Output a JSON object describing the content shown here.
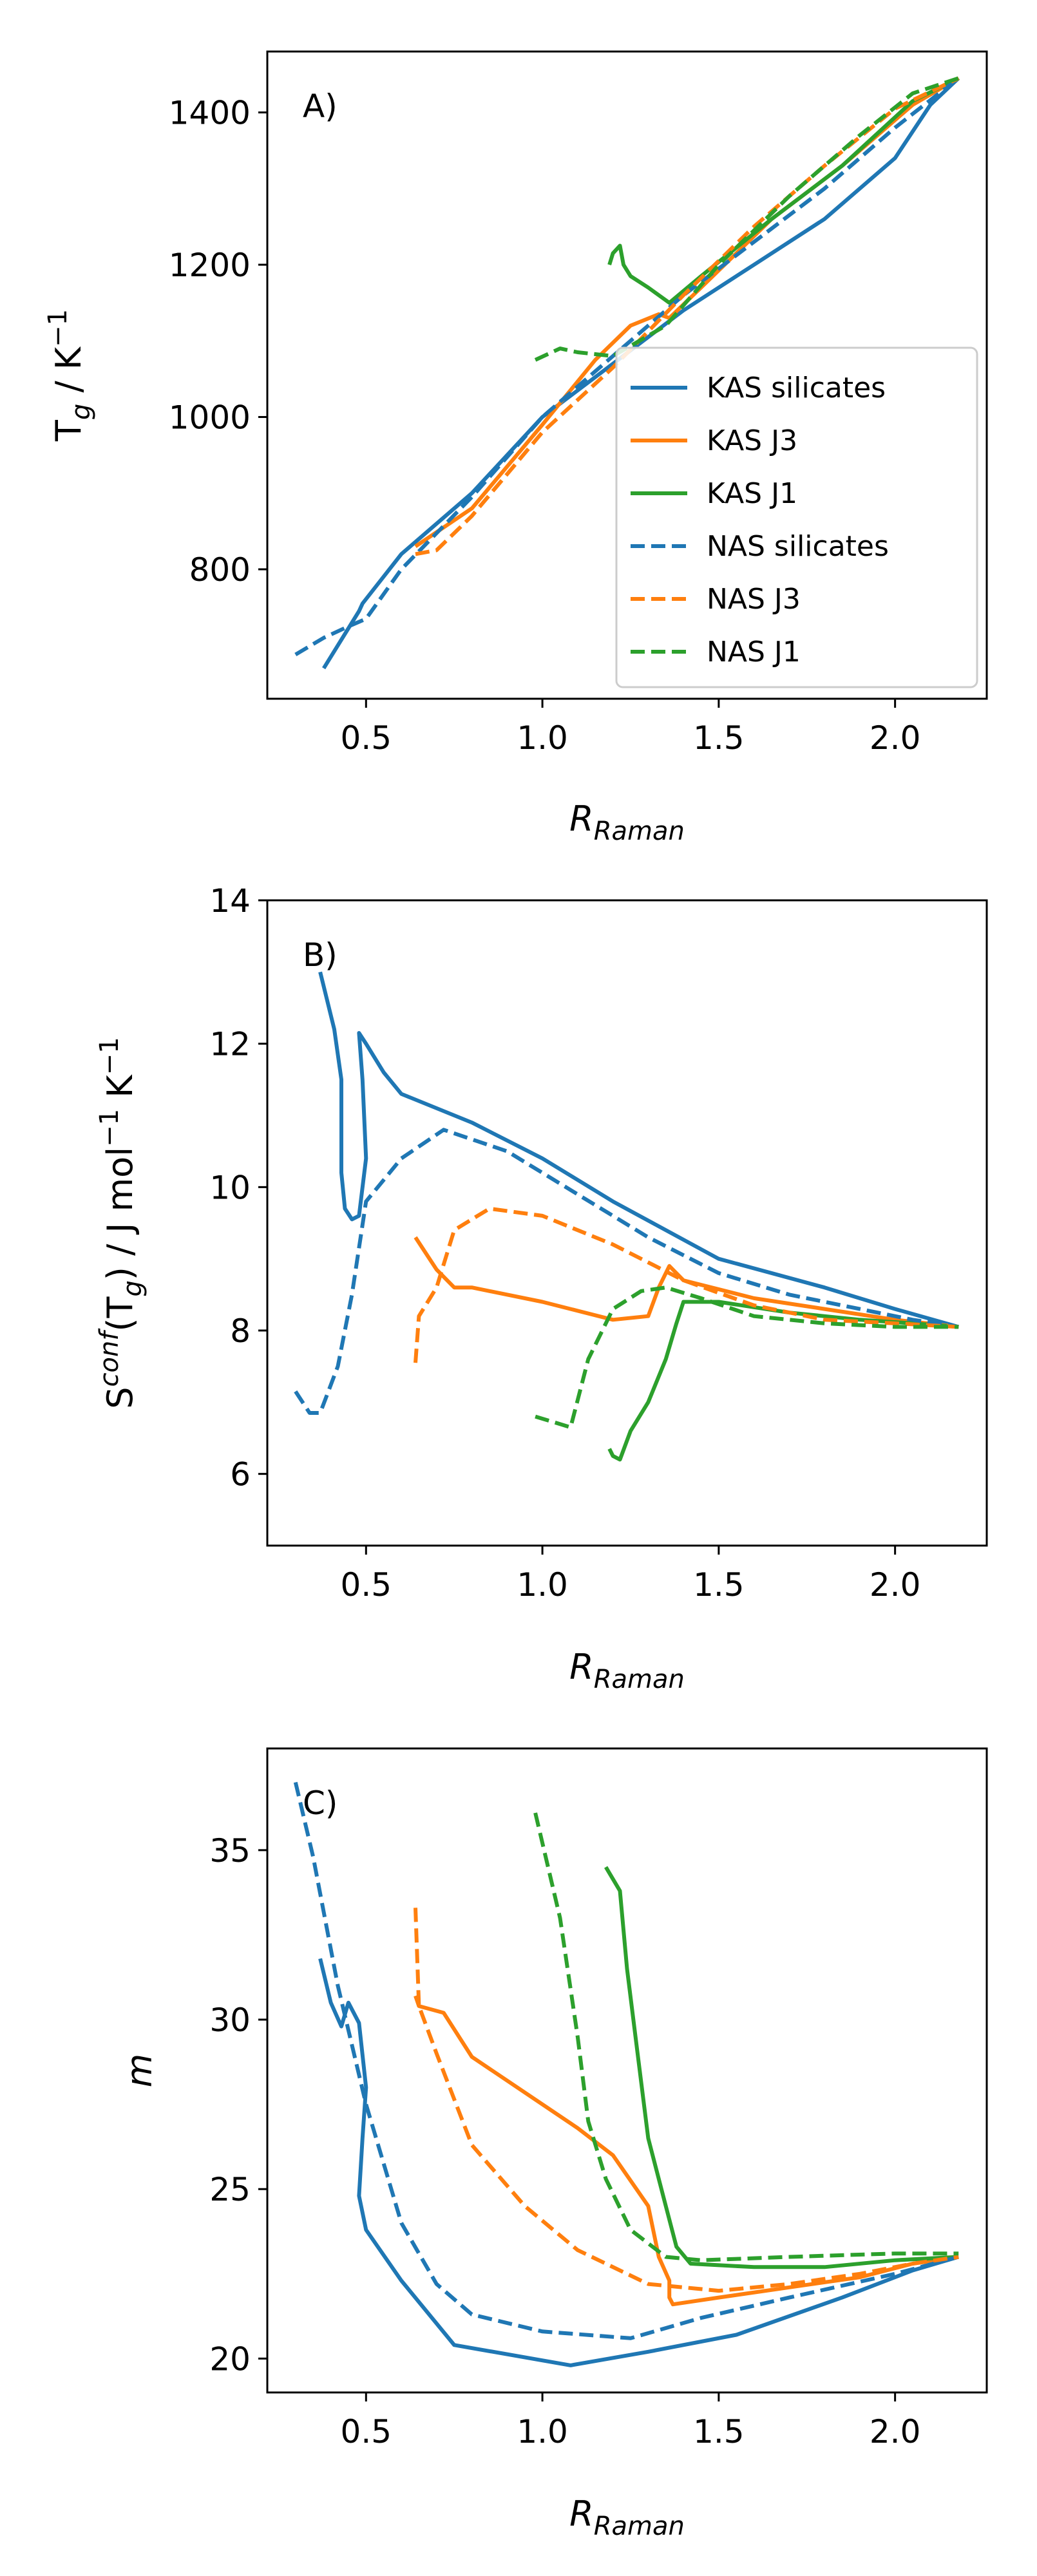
{
  "chart_data": [
    {
      "type": "line",
      "panel_label": "A)",
      "xlabel": "R_Raman",
      "ylabel": "T_g / K⁻¹",
      "xlim": [
        0.22,
        2.26
      ],
      "ylim": [
        630,
        1480
      ],
      "xticks": [
        "0.5",
        "1.0",
        "1.5",
        "2.0"
      ],
      "yticks": [
        "800",
        "1000",
        "1200",
        "1400"
      ],
      "legend_position": "lower-right",
      "series": [
        {
          "name": "KAS silicates",
          "color": "#1f77b4",
          "style": "solid",
          "x": [
            0.38,
            0.48,
            0.49,
            0.6,
            0.8,
            1.0,
            1.2,
            1.4,
            1.6,
            1.8,
            2.0,
            2.1,
            2.18
          ],
          "y": [
            670,
            745,
            755,
            820,
            900,
            1000,
            1070,
            1140,
            1200,
            1260,
            1340,
            1410,
            1445
          ]
        },
        {
          "name": "KAS J3",
          "color": "#ff7f0e",
          "style": "solid",
          "x": [
            0.64,
            0.8,
            1.0,
            1.15,
            1.25,
            1.33,
            1.36,
            1.45,
            1.65,
            1.85,
            2.05,
            2.18
          ],
          "y": [
            830,
            880,
            990,
            1075,
            1120,
            1135,
            1130,
            1170,
            1260,
            1330,
            1410,
            1445
          ]
        },
        {
          "name": "KAS J1",
          "color": "#2ca02c",
          "style": "solid",
          "x": [
            1.19,
            1.2,
            1.22,
            1.23,
            1.25,
            1.3,
            1.36,
            1.45,
            1.65,
            1.85,
            2.05,
            2.18
          ],
          "y": [
            1200,
            1215,
            1225,
            1200,
            1185,
            1170,
            1150,
            1185,
            1260,
            1330,
            1415,
            1445
          ]
        },
        {
          "name": "NAS silicates",
          "color": "#1f77b4",
          "style": "dashed",
          "x": [
            0.3,
            0.38,
            0.45,
            0.5,
            0.6,
            0.8,
            1.0,
            1.2,
            1.4,
            1.6,
            1.8,
            2.0,
            2.18
          ],
          "y": [
            688,
            710,
            725,
            735,
            800,
            895,
            1000,
            1080,
            1160,
            1230,
            1300,
            1380,
            1445
          ]
        },
        {
          "name": "NAS J3",
          "color": "#ff7f0e",
          "style": "dashed",
          "x": [
            0.64,
            0.7,
            0.8,
            1.0,
            1.2,
            1.4,
            1.6,
            1.8,
            2.0,
            2.18
          ],
          "y": [
            820,
            825,
            870,
            980,
            1065,
            1160,
            1250,
            1330,
            1405,
            1445
          ]
        },
        {
          "name": "NAS J1",
          "color": "#2ca02c",
          "style": "dashed",
          "x": [
            0.98,
            1.05,
            1.1,
            1.2,
            1.35,
            1.5,
            1.7,
            1.9,
            2.05,
            2.18
          ],
          "y": [
            1075,
            1090,
            1085,
            1080,
            1120,
            1200,
            1290,
            1370,
            1425,
            1445
          ]
        }
      ]
    },
    {
      "type": "line",
      "panel_label": "B)",
      "xlabel": "R_Raman",
      "ylabel": "S^conf(T_g) / J mol⁻¹ K⁻¹",
      "xlim": [
        0.22,
        2.26
      ],
      "ylim": [
        5,
        14
      ],
      "xticks": [
        "0.5",
        "1.0",
        "1.5",
        "2.0"
      ],
      "yticks": [
        "6",
        "8",
        "10",
        "12",
        "14"
      ],
      "series": [
        {
          "name": "KAS silicates",
          "color": "#1f77b4",
          "style": "solid",
          "x": [
            0.37,
            0.41,
            0.43,
            0.43,
            0.44,
            0.46,
            0.48,
            0.5,
            0.49,
            0.48,
            0.5,
            0.55,
            0.6,
            0.8,
            1.0,
            1.2,
            1.5,
            1.8,
            2.0,
            2.18
          ],
          "y": [
            13.0,
            12.2,
            11.5,
            10.2,
            9.7,
            9.55,
            9.6,
            10.4,
            11.5,
            12.15,
            12.0,
            11.6,
            11.3,
            10.9,
            10.4,
            9.8,
            9.0,
            8.6,
            8.3,
            8.05
          ]
        },
        {
          "name": "KAS J3",
          "color": "#ff7f0e",
          "style": "solid",
          "x": [
            0.64,
            0.7,
            0.75,
            0.8,
            1.0,
            1.2,
            1.3,
            1.33,
            1.36,
            1.4,
            1.6,
            1.8,
            2.0,
            2.18
          ],
          "y": [
            9.3,
            8.85,
            8.6,
            8.6,
            8.4,
            8.15,
            8.2,
            8.6,
            8.9,
            8.7,
            8.45,
            8.3,
            8.15,
            8.05
          ]
        },
        {
          "name": "KAS J1",
          "color": "#2ca02c",
          "style": "solid",
          "x": [
            1.19,
            1.2,
            1.22,
            1.25,
            1.3,
            1.35,
            1.38,
            1.4,
            1.5,
            1.7,
            1.9,
            2.05,
            2.18
          ],
          "y": [
            6.35,
            6.25,
            6.2,
            6.6,
            7.0,
            7.6,
            8.1,
            8.4,
            8.4,
            8.25,
            8.15,
            8.1,
            8.05
          ]
        },
        {
          "name": "NAS silicates",
          "color": "#1f77b4",
          "style": "dashed",
          "x": [
            0.3,
            0.34,
            0.37,
            0.42,
            0.46,
            0.5,
            0.6,
            0.72,
            0.9,
            1.1,
            1.3,
            1.5,
            1.7,
            1.9,
            2.05,
            2.18
          ],
          "y": [
            7.15,
            6.85,
            6.85,
            7.5,
            8.5,
            9.8,
            10.4,
            10.8,
            10.5,
            9.9,
            9.3,
            8.8,
            8.5,
            8.3,
            8.15,
            8.05
          ]
        },
        {
          "name": "NAS J3",
          "color": "#ff7f0e",
          "style": "dashed",
          "x": [
            0.64,
            0.65,
            0.7,
            0.75,
            0.85,
            1.0,
            1.2,
            1.4,
            1.6,
            1.8,
            2.0,
            2.18
          ],
          "y": [
            7.55,
            8.2,
            8.6,
            9.4,
            9.7,
            9.6,
            9.2,
            8.7,
            8.35,
            8.15,
            8.1,
            8.05
          ]
        },
        {
          "name": "NAS J1",
          "color": "#2ca02c",
          "style": "dashed",
          "x": [
            0.98,
            1.08,
            1.13,
            1.2,
            1.28,
            1.35,
            1.45,
            1.6,
            1.8,
            2.0,
            2.18
          ],
          "y": [
            6.8,
            6.65,
            7.6,
            8.3,
            8.55,
            8.6,
            8.45,
            8.2,
            8.1,
            8.05,
            8.05
          ]
        }
      ]
    },
    {
      "type": "line",
      "panel_label": "C)",
      "xlabel": "R_Raman",
      "ylabel": "m",
      "xlim": [
        0.22,
        2.26
      ],
      "ylim": [
        19,
        38
      ],
      "xticks": [
        "0.5",
        "1.0",
        "1.5",
        "2.0"
      ],
      "yticks": [
        "20",
        "25",
        "30",
        "35"
      ],
      "series": [
        {
          "name": "KAS silicates",
          "color": "#1f77b4",
          "style": "solid",
          "x": [
            0.37,
            0.4,
            0.43,
            0.45,
            0.48,
            0.5,
            0.49,
            0.48,
            0.5,
            0.6,
            0.75,
            1.08,
            1.3,
            1.55,
            1.85,
            2.05,
            2.18
          ],
          "y": [
            31.8,
            30.5,
            29.8,
            30.5,
            29.9,
            28.0,
            26.5,
            24.8,
            23.8,
            22.3,
            20.4,
            19.8,
            20.2,
            20.7,
            21.8,
            22.6,
            23.0
          ]
        },
        {
          "name": "KAS J3",
          "color": "#ff7f0e",
          "style": "solid",
          "x": [
            0.64,
            0.65,
            0.72,
            0.8,
            1.0,
            1.1,
            1.2,
            1.3,
            1.33,
            1.36,
            1.36,
            1.37,
            1.5,
            1.7,
            1.9,
            2.05,
            2.18
          ],
          "y": [
            30.7,
            30.4,
            30.2,
            28.9,
            27.5,
            26.8,
            26.0,
            24.5,
            23.0,
            22.3,
            21.8,
            21.6,
            21.8,
            22.1,
            22.4,
            22.8,
            23.0
          ]
        },
        {
          "name": "KAS J1",
          "color": "#2ca02c",
          "style": "solid",
          "x": [
            1.18,
            1.22,
            1.24,
            1.27,
            1.3,
            1.35,
            1.38,
            1.42,
            1.6,
            1.8,
            2.0,
            2.18
          ],
          "y": [
            34.5,
            33.8,
            31.5,
            29.0,
            26.5,
            24.5,
            23.3,
            22.8,
            22.7,
            22.7,
            22.9,
            23.0
          ]
        },
        {
          "name": "NAS silicates",
          "color": "#1f77b4",
          "style": "dashed",
          "x": [
            0.3,
            0.35,
            0.42,
            0.5,
            0.6,
            0.7,
            0.8,
            1.0,
            1.25,
            1.45,
            1.7,
            2.0,
            2.18
          ],
          "y": [
            37.0,
            34.8,
            31.0,
            27.5,
            24.0,
            22.2,
            21.3,
            20.8,
            20.6,
            21.2,
            21.8,
            22.5,
            23.0
          ]
        },
        {
          "name": "NAS J3",
          "color": "#ff7f0e",
          "style": "dashed",
          "x": [
            0.64,
            0.65,
            0.7,
            0.8,
            0.95,
            1.1,
            1.3,
            1.5,
            1.7,
            1.9,
            2.05,
            2.18
          ],
          "y": [
            33.3,
            30.4,
            29.0,
            26.3,
            24.5,
            23.2,
            22.2,
            22.0,
            22.2,
            22.5,
            22.8,
            23.0
          ]
        },
        {
          "name": "NAS J1",
          "color": "#2ca02c",
          "style": "dashed",
          "x": [
            0.98,
            1.05,
            1.1,
            1.13,
            1.18,
            1.25,
            1.35,
            1.45,
            1.7,
            2.0,
            2.18
          ],
          "y": [
            36.1,
            33.0,
            29.5,
            27.0,
            25.3,
            23.8,
            23.0,
            22.9,
            23.0,
            23.1,
            23.1
          ]
        }
      ]
    }
  ],
  "legend": {
    "entries": [
      {
        "label": "KAS silicates",
        "color": "#1f77b4",
        "style": "solid"
      },
      {
        "label": "KAS J3",
        "color": "#ff7f0e",
        "style": "solid"
      },
      {
        "label": "KAS J1",
        "color": "#2ca02c",
        "style": "solid"
      },
      {
        "label": "NAS silicates",
        "color": "#1f77b4",
        "style": "dashed"
      },
      {
        "label": "NAS J3",
        "color": "#ff7f0e",
        "style": "dashed"
      },
      {
        "label": "NAS J1",
        "color": "#2ca02c",
        "style": "dashed"
      }
    ]
  }
}
